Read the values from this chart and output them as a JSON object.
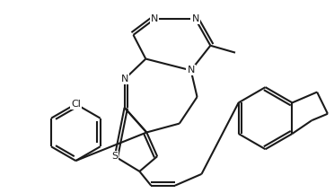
{
  "bg_color": "#ffffff",
  "line_color": "#1a1a1a",
  "lw": 1.5,
  "figsize": [
    3.72,
    2.15
  ],
  "dpi": 100,
  "xlim": [
    0,
    372
  ],
  "ylim": [
    0,
    215
  ]
}
